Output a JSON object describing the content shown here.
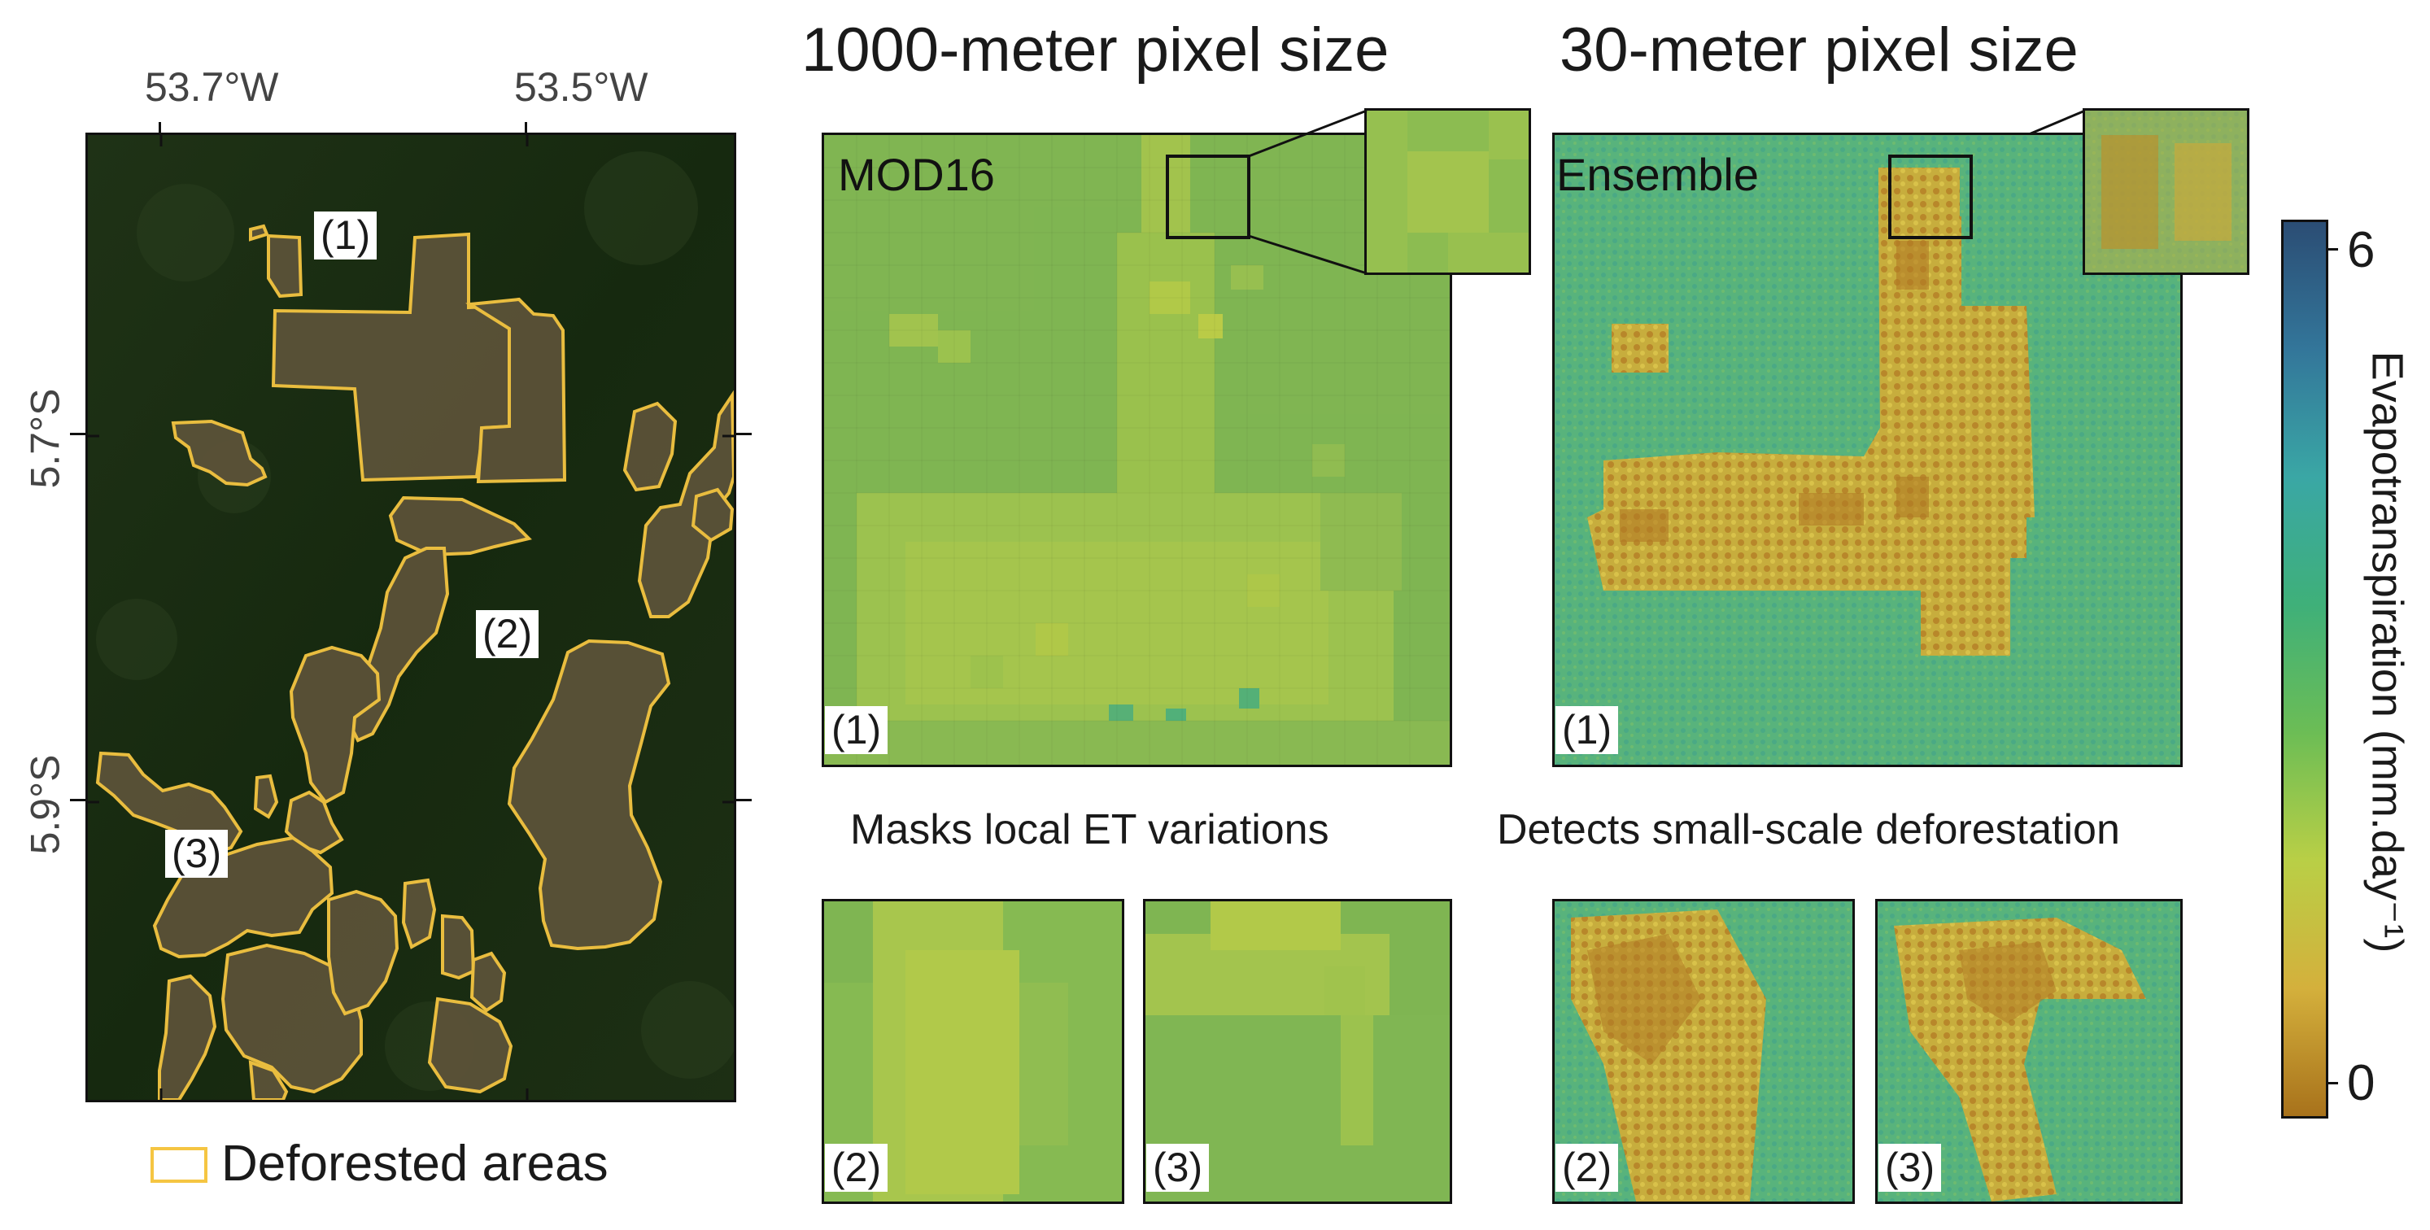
{
  "figure": {
    "headings": {
      "coarse": "1000-meter pixel size",
      "fine": "30-meter pixel size"
    },
    "captions": {
      "coarse": "Masks local ET variations",
      "fine": "Detects small-scale deforestation"
    }
  },
  "map": {
    "lon_labels": [
      "53.7°W",
      "53.5°W"
    ],
    "lat_labels": [
      "5.7°S",
      "5.9°S"
    ],
    "area_labels": [
      "(1)",
      "(2)",
      "(3)"
    ],
    "legend": {
      "label": "Deforested areas",
      "color": "#f5c542"
    }
  },
  "panels": {
    "mod16_main": {
      "title": "MOD16",
      "label": "(1)"
    },
    "ensemble_main": {
      "title": "Ensemble",
      "label": "(1)"
    },
    "mod16_small": [
      {
        "label": "(2)"
      },
      {
        "label": "(3)"
      }
    ],
    "ensemble_small": [
      {
        "label": "(2)"
      },
      {
        "label": "(3)"
      }
    ]
  },
  "colorbar": {
    "label": "Evapotranspiration (mm.day⁻¹)",
    "max_label": "6",
    "min_label": "0",
    "range": [
      0,
      6
    ],
    "colors": [
      "#a8721b",
      "#d4b03c",
      "#b9cf46",
      "#6cbd55",
      "#3fb079",
      "#3aa7a5",
      "#33769a",
      "#2b4d74"
    ]
  }
}
